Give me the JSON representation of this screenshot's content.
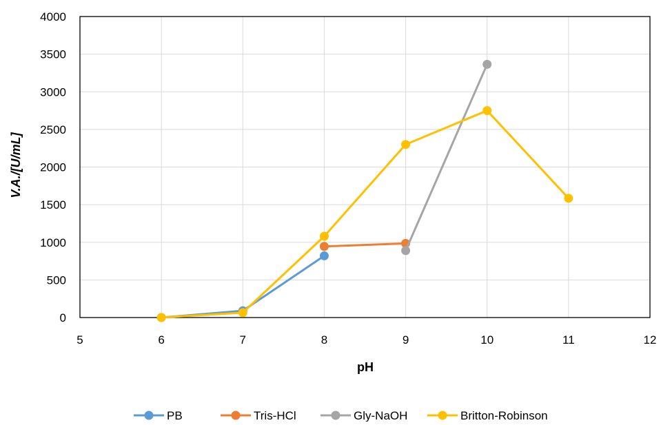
{
  "chart_data": {
    "type": "line",
    "title": "",
    "xlabel": "pH",
    "ylabel": "V.A./[U/mL]",
    "xlim": [
      5,
      12
    ],
    "ylim": [
      0,
      4000
    ],
    "xticks": [
      5,
      6,
      7,
      8,
      9,
      10,
      11,
      12
    ],
    "yticks": [
      0,
      500,
      1000,
      1500,
      2000,
      2500,
      3000,
      3500,
      4000
    ],
    "grid": true,
    "legend_position": "bottom",
    "markers": true,
    "series": [
      {
        "name": "PB",
        "color": "#5B9BD5",
        "x": [
          6,
          7,
          8
        ],
        "y": [
          0,
          90,
          820
        ]
      },
      {
        "name": "Tris-HCl",
        "color": "#ED7D31",
        "x": [
          8,
          9
        ],
        "y": [
          945,
          985
        ]
      },
      {
        "name": "Gly-NaOH",
        "color": "#A5A5A5",
        "x": [
          9,
          10
        ],
        "y": [
          890,
          3365
        ]
      },
      {
        "name": "Britton-Robinson",
        "color": "#FFC000",
        "x": [
          6,
          7,
          8,
          9,
          10,
          11
        ],
        "y": [
          0,
          65,
          1080,
          2300,
          2750,
          1585
        ]
      }
    ]
  }
}
